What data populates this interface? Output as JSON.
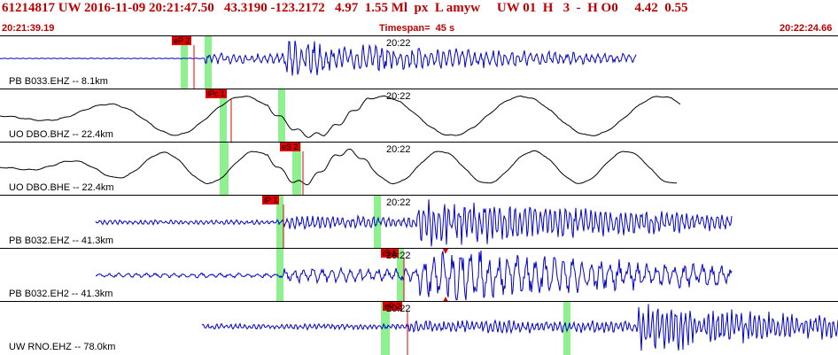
{
  "header": {
    "event_line": "61214817 UW 2016-11-09 20:21:47.50   43.3190 -123.2172   4.97  1.55 Ml  px  L amyw     UW 01  H   3  -  H O0     4.42  0.55",
    "start_time": "20:21:39.19",
    "timespan": "Timespan=  45 s",
    "end_time": "20:22:24.66"
  },
  "colors": {
    "header_text": "#c00000",
    "trace_blue": "#0000cc",
    "trace_black": "#000000",
    "pick_red": "#e00000",
    "window_green": "#8ff08f"
  },
  "panels": [
    {
      "station": "PB B033.EHZ -- 8.1km",
      "minute": "20:22",
      "pick": "eP 2",
      "trace": "blue"
    },
    {
      "station": "UO DBO.BHZ -- 22.4km",
      "minute": "20:22",
      "pick": "iPc 1",
      "trace": "black"
    },
    {
      "station": "UO DBO.BHE -- 22.4km",
      "minute": "20:22",
      "pick": "eS 2",
      "trace": "black"
    },
    {
      "station": "PB B032.EHZ -- 41.3km",
      "minute": "20:22",
      "pick": "iP 1",
      "trace": "blue"
    },
    {
      "station": "PB B032.EH2 -- 41.3km",
      "minute": "20:22",
      "pick": "iS 1",
      "trace": "blue"
    },
    {
      "station": "UW RNO.EHZ -- 78.0km",
      "minute": "20:22",
      "pick": "eP 2",
      "trace": "blue"
    }
  ]
}
